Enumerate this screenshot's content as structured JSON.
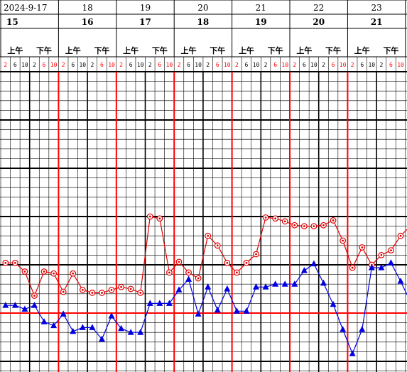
{
  "chart_data": {
    "type": "line",
    "dates": [
      "2024-9-17",
      "18",
      "19",
      "20",
      "21",
      "22",
      "23"
    ],
    "day_numbers": [
      "15",
      "16",
      "17",
      "18",
      "19",
      "20",
      "21"
    ],
    "am_label": "上午",
    "pm_label": "下午",
    "hours": [
      "2",
      "6",
      "10",
      "2",
      "6",
      "10"
    ],
    "hour_colors": [
      "#ff0000",
      "#000000",
      "#000000",
      "#000000",
      "#ff0000",
      "#ff0000"
    ],
    "y_scale_rows": [
      0,
      30
    ],
    "reference_line_row": 25,
    "series": [
      {
        "color": "#e00000",
        "marker": "circle",
        "values": [
          [
            19.8,
            19.8,
            20.7,
            23.2,
            20.7,
            20.9,
            22.8,
            20.9,
            22.6,
            22.9,
            22.9,
            22.6,
            22.3,
            22.5,
            22.9
          ],
          [
            15.0,
            15.2,
            20.8,
            19.7,
            20.8,
            21.4,
            17.0,
            18.0,
            19.8,
            20.8,
            19.8
          ],
          [
            18.9,
            15.1,
            15.2,
            15.5,
            15.9,
            16.0,
            16.0,
            15.9,
            15.4,
            17.5,
            20.3,
            18.2,
            20.0,
            19.0,
            18.5,
            17.0,
            16.0,
            16.8,
            19.8,
            19.5,
            15.9
          ]
        ]
      },
      {
        "color": "#0000e0",
        "marker": "triangle",
        "values": [
          [
            24.2,
            24.2,
            24.6,
            24.2,
            25.9,
            26.3,
            25.1,
            26.9,
            26.5,
            26.5,
            27.7,
            25.3,
            26.6,
            27.0
          ],
          [
            27.0,
            24.0,
            24.0,
            24.0,
            22.6,
            21.5,
            25.1,
            22.3,
            24.7,
            22.5,
            24.8,
            24.8
          ],
          [
            22.3,
            22.3,
            22.0,
            22.0,
            22.0,
            20.6,
            19.9,
            21.9,
            24.1,
            26.7,
            29.2,
            26.7,
            20.3,
            20.3,
            19.8,
            21.7,
            23.8
          ]
        ]
      }
    ]
  }
}
